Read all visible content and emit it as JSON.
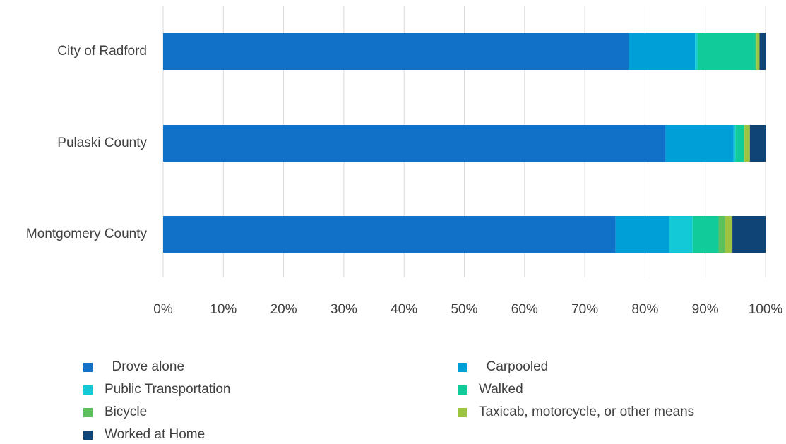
{
  "chart_data": {
    "type": "bar",
    "orientation": "horizontal",
    "stacked": "percent",
    "categories": [
      "City of Radford",
      "Pulaski County",
      "Montgomery County"
    ],
    "series": [
      {
        "name": "Drove alone",
        "color": "#1170c8",
        "values": [
          77.3,
          83.4,
          75.1
        ]
      },
      {
        "name": "Carpooled",
        "color": "#009fd8",
        "values": [
          11.0,
          11.3,
          8.9
        ]
      },
      {
        "name": "Public Transportation",
        "color": "#13c9d8",
        "values": [
          0.4,
          0.3,
          3.9
        ]
      },
      {
        "name": "Walked",
        "color": "#12cb9a",
        "values": [
          9.6,
          1.4,
          4.3
        ]
      },
      {
        "name": "Bicycle",
        "color": "#5cc05c",
        "values": [
          0.2,
          0.1,
          1.1
        ]
      },
      {
        "name": "Taxicab, motorcycle, or other means",
        "color": "#9cc441",
        "values": [
          0.5,
          0.9,
          1.2
        ]
      },
      {
        "name": "Worked at Home",
        "color": "#0f4477",
        "values": [
          1.0,
          2.6,
          5.5
        ]
      }
    ],
    "xlim": [
      0,
      100
    ],
    "x_ticks": [
      "0%",
      "10%",
      "20%",
      "30%",
      "40%",
      "50%",
      "60%",
      "70%",
      "80%",
      "90%",
      "100%"
    ],
    "grid": true,
    "legend_position": "bottom"
  },
  "legend": {
    "labels": [
      "  Drove alone",
      "  Carpooled",
      "Public Transportation",
      "Walked",
      "Bicycle",
      "Taxicab, motorcycle, or other means",
      "Worked at Home"
    ]
  }
}
